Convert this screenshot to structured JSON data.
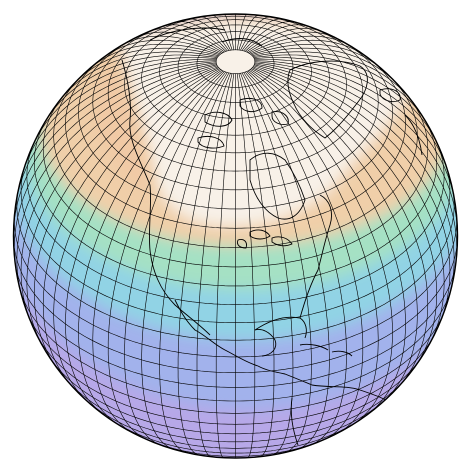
{
  "map": {
    "projection": "orthographic",
    "center": {
      "lon": -95,
      "lat": 38
    },
    "graticule": {
      "lon_step_deg": 5,
      "lat_step_deg": 5
    },
    "coastlines": true,
    "field_colormap": [
      "#f8f3ec",
      "#f4cfa9",
      "#a9e0bf",
      "#8fd6e3",
      "#a9a8ea",
      "#c4a5e6"
    ],
    "ocean_tint_bottom": "#b8a6e4",
    "line_color": "#000000",
    "labels": []
  }
}
